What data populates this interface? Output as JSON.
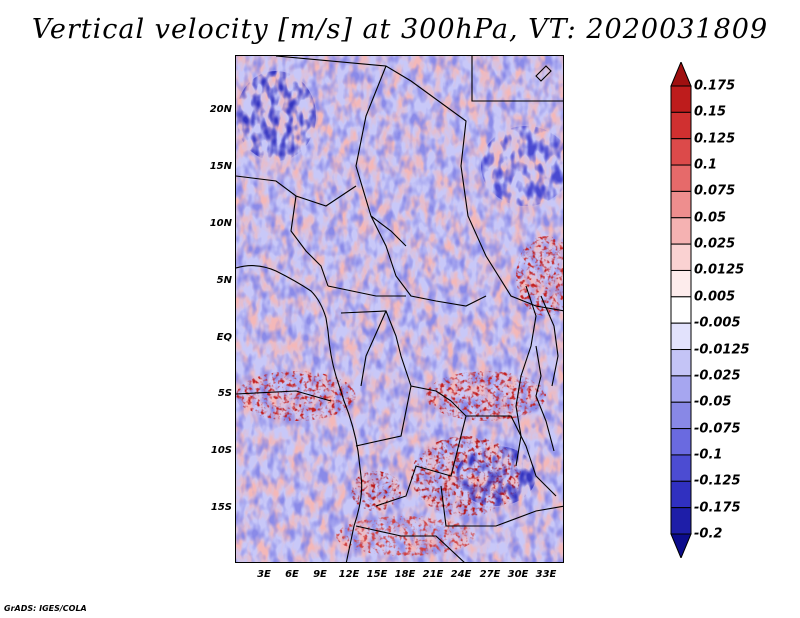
{
  "title": "Vertical velocity [m/s] at 300hPa, VT: 2020031809",
  "footer": "GrADS: IGES/COLA",
  "lat_labels": [
    "20N",
    "15N",
    "10N",
    "5N",
    "EQ",
    "5S",
    "10S",
    "15S"
  ],
  "lon_labels": [
    "3E",
    "6E",
    "9E",
    "12E",
    "15E",
    "18E",
    "21E",
    "24E",
    "27E",
    "30E",
    "33E"
  ],
  "colorbar": {
    "levels": [
      "0.175",
      "0.15",
      "0.125",
      "0.1",
      "0.075",
      "0.05",
      "0.025",
      "0.0125",
      "0.005",
      "-0.005",
      "-0.0125",
      "-0.025",
      "-0.05",
      "-0.075",
      "-0.1",
      "-0.125",
      "-0.175",
      "-0.2"
    ],
    "colors": [
      "#a01010",
      "#be1c1c",
      "#d03030",
      "#dc4a4a",
      "#e66a6a",
      "#ee8e8e",
      "#f5b2b2",
      "#fad2d2",
      "#fdecec",
      "#ffffff",
      "#e2e2fc",
      "#c4c4f6",
      "#a6a6f0",
      "#8888e6",
      "#6a6ae0",
      "#4c4cd2",
      "#3030c0",
      "#1e1ea8",
      "#0c0c8c"
    ]
  }
}
